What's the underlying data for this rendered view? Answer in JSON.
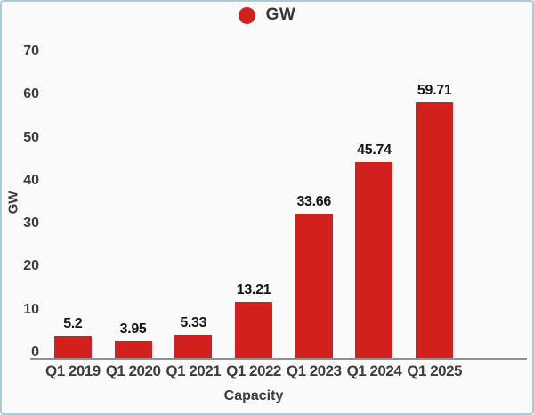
{
  "legend": {
    "label": "GW",
    "marker_color": "#d2201f"
  },
  "chart_data": {
    "type": "bar",
    "categories": [
      "Q1 2019",
      "Q1 2020",
      "Q1 2021",
      "Q1 2022",
      "Q1 2023",
      "Q1 2024",
      "Q1 2025"
    ],
    "values": [
      5.2,
      3.95,
      5.33,
      13.21,
      33.66,
      45.74,
      59.71
    ],
    "value_labels": [
      "5.2",
      "3.95",
      "5.33",
      "13.21",
      "33.66",
      "45.74",
      "59.71"
    ],
    "title": "",
    "xlabel": "Capacity",
    "ylabel": "GW",
    "ylim": [
      0,
      70
    ],
    "yticks": [
      0,
      10,
      20,
      30,
      40,
      50,
      60,
      70
    ],
    "series_name": "GW",
    "bar_color": "#d2201f",
    "legend_position": "top-center",
    "grid": false
  },
  "colors": {
    "frame_border": "#a9cbd6",
    "background": "#fbfbfb",
    "axis_line": "#919191",
    "text": "#3c3c3c",
    "value_label_text": "#141414"
  }
}
